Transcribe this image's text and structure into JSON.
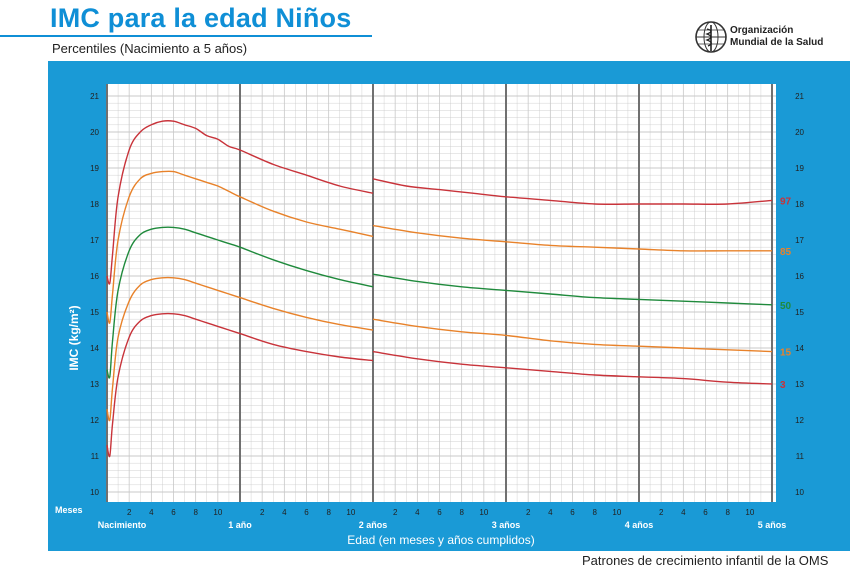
{
  "header": {
    "title": "IMC para la edad Niños",
    "subtitle": "Percentiles (Nacimiento a 5 años)",
    "org_line1": "Organización",
    "org_line2": "Mundial de la Salud"
  },
  "footer": {
    "text": "Patrones de crecimiento infantil de la OMS"
  },
  "colors": {
    "frame": "#1a9ad6",
    "grid_bg": "#ffffff",
    "grid_line": "#c8c8c8",
    "year_line": "#707070",
    "red": "#c8333a",
    "orange": "#e8822a",
    "green": "#1f8a3c"
  },
  "chart_data": {
    "type": "line",
    "title": "IMC para la edad Niños",
    "ylabel": "IMC (kg/m²)",
    "xlabel": "Edad (en meses y años cumplidos)",
    "ylim": [
      10,
      21
    ],
    "xlim": [
      0,
      60
    ],
    "y_ticks": [
      10,
      11,
      12,
      13,
      14,
      15,
      16,
      17,
      18,
      19,
      20,
      21
    ],
    "x_row_label": "Meses",
    "month_tick_labels": [
      "2",
      "4",
      "6",
      "8",
      "10"
    ],
    "year_labels": [
      {
        "month": 0,
        "text": "Nacimiento"
      },
      {
        "month": 12,
        "text": "1 año"
      },
      {
        "month": 24,
        "text": "2 años"
      },
      {
        "month": 36,
        "text": "3 años"
      },
      {
        "month": 48,
        "text": "4 años"
      },
      {
        "month": 60,
        "text": "5 años"
      }
    ],
    "grid": true,
    "series": [
      {
        "name": "97",
        "color_key": "red",
        "segments": [
          [
            [
              0,
              16.0
            ],
            [
              0.25,
              15.8
            ],
            [
              0.5,
              16.6
            ],
            [
              1,
              18.2
            ],
            [
              2,
              19.5
            ],
            [
              3,
              20.0
            ],
            [
              4,
              20.2
            ],
            [
              5,
              20.3
            ],
            [
              6,
              20.3
            ],
            [
              7,
              20.2
            ],
            [
              8,
              20.1
            ],
            [
              9,
              19.9
            ],
            [
              10,
              19.8
            ],
            [
              11,
              19.6
            ],
            [
              12,
              19.5
            ],
            [
              15,
              19.1
            ],
            [
              18,
              18.8
            ],
            [
              21,
              18.5
            ],
            [
              24,
              18.3
            ]
          ],
          [
            [
              24,
              18.7
            ],
            [
              27,
              18.5
            ],
            [
              30,
              18.4
            ],
            [
              33,
              18.3
            ],
            [
              36,
              18.2
            ],
            [
              40,
              18.1
            ],
            [
              44,
              18.0
            ],
            [
              48,
              18.0
            ],
            [
              52,
              18.0
            ],
            [
              56,
              18.0
            ],
            [
              60,
              18.1
            ]
          ]
        ]
      },
      {
        "name": "85",
        "color_key": "orange",
        "segments": [
          [
            [
              0,
              15.0
            ],
            [
              0.25,
              14.7
            ],
            [
              0.5,
              15.5
            ],
            [
              1,
              17.0
            ],
            [
              2,
              18.2
            ],
            [
              3,
              18.7
            ],
            [
              4,
              18.85
            ],
            [
              5,
              18.9
            ],
            [
              6,
              18.9
            ],
            [
              7,
              18.8
            ],
            [
              8,
              18.7
            ],
            [
              9,
              18.6
            ],
            [
              10,
              18.5
            ],
            [
              11,
              18.35
            ],
            [
              12,
              18.2
            ],
            [
              15,
              17.8
            ],
            [
              18,
              17.5
            ],
            [
              21,
              17.3
            ],
            [
              24,
              17.1
            ]
          ],
          [
            [
              24,
              17.4
            ],
            [
              28,
              17.2
            ],
            [
              32,
              17.05
            ],
            [
              36,
              16.95
            ],
            [
              40,
              16.85
            ],
            [
              44,
              16.8
            ],
            [
              48,
              16.75
            ],
            [
              52,
              16.7
            ],
            [
              56,
              16.7
            ],
            [
              60,
              16.7
            ]
          ]
        ]
      },
      {
        "name": "50",
        "color_key": "green",
        "segments": [
          [
            [
              0,
              13.4
            ],
            [
              0.25,
              13.2
            ],
            [
              0.5,
              14.2
            ],
            [
              1,
              15.6
            ],
            [
              2,
              16.7
            ],
            [
              3,
              17.15
            ],
            [
              4,
              17.3
            ],
            [
              5,
              17.35
            ],
            [
              6,
              17.35
            ],
            [
              7,
              17.3
            ],
            [
              8,
              17.2
            ],
            [
              9,
              17.1
            ],
            [
              10,
              17.0
            ],
            [
              11,
              16.9
            ],
            [
              12,
              16.8
            ],
            [
              15,
              16.45
            ],
            [
              18,
              16.15
            ],
            [
              21,
              15.9
            ],
            [
              24,
              15.7
            ]
          ],
          [
            [
              24,
              16.05
            ],
            [
              28,
              15.85
            ],
            [
              32,
              15.7
            ],
            [
              36,
              15.6
            ],
            [
              40,
              15.5
            ],
            [
              44,
              15.4
            ],
            [
              48,
              15.35
            ],
            [
              52,
              15.3
            ],
            [
              56,
              15.25
            ],
            [
              60,
              15.2
            ]
          ]
        ]
      },
      {
        "name": "15",
        "color_key": "orange",
        "segments": [
          [
            [
              0,
              12.3
            ],
            [
              0.25,
              12.0
            ],
            [
              0.5,
              12.9
            ],
            [
              1,
              14.3
            ],
            [
              2,
              15.3
            ],
            [
              3,
              15.75
            ],
            [
              4,
              15.9
            ],
            [
              5,
              15.95
            ],
            [
              6,
              15.95
            ],
            [
              7,
              15.9
            ],
            [
              8,
              15.8
            ],
            [
              9,
              15.7
            ],
            [
              10,
              15.6
            ],
            [
              11,
              15.5
            ],
            [
              12,
              15.4
            ],
            [
              15,
              15.1
            ],
            [
              18,
              14.85
            ],
            [
              21,
              14.65
            ],
            [
              24,
              14.5
            ]
          ],
          [
            [
              24,
              14.8
            ],
            [
              28,
              14.6
            ],
            [
              32,
              14.45
            ],
            [
              36,
              14.35
            ],
            [
              40,
              14.2
            ],
            [
              44,
              14.1
            ],
            [
              48,
              14.05
            ],
            [
              52,
              14.0
            ],
            [
              56,
              13.95
            ],
            [
              60,
              13.9
            ]
          ]
        ]
      },
      {
        "name": "3",
        "color_key": "red",
        "segments": [
          [
            [
              0,
              11.3
            ],
            [
              0.25,
              11.0
            ],
            [
              0.5,
              11.9
            ],
            [
              1,
              13.2
            ],
            [
              2,
              14.3
            ],
            [
              3,
              14.75
            ],
            [
              4,
              14.9
            ],
            [
              5,
              14.95
            ],
            [
              6,
              14.95
            ],
            [
              7,
              14.9
            ],
            [
              8,
              14.8
            ],
            [
              9,
              14.7
            ],
            [
              10,
              14.6
            ],
            [
              11,
              14.5
            ],
            [
              12,
              14.4
            ],
            [
              15,
              14.1
            ],
            [
              18,
              13.9
            ],
            [
              21,
              13.75
            ],
            [
              24,
              13.65
            ]
          ],
          [
            [
              24,
              13.9
            ],
            [
              28,
              13.7
            ],
            [
              32,
              13.55
            ],
            [
              36,
              13.45
            ],
            [
              40,
              13.35
            ],
            [
              44,
              13.25
            ],
            [
              48,
              13.2
            ],
            [
              52,
              13.15
            ],
            [
              56,
              13.05
            ],
            [
              60,
              13.0
            ]
          ]
        ]
      }
    ]
  }
}
